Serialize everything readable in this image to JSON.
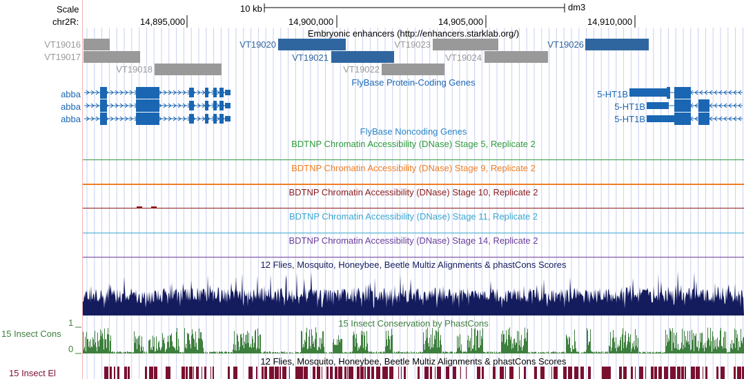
{
  "browser": {
    "ruler": {
      "scale_label": "Scale",
      "scale_bar_text": "10 kb",
      "assembly": "dm3",
      "chrom_label": "chr2R:",
      "positions": [
        "14,895,000",
        "14,900,000",
        "14,905,000",
        "14,910,000"
      ]
    },
    "tracks": {
      "enhancers": {
        "title": "Embryonic enhancers (http://enhancers.starklab.org/)",
        "items": [
          {
            "name": "VT19016",
            "color": "#999999"
          },
          {
            "name": "VT19017",
            "color": "#999999"
          },
          {
            "name": "VT19018",
            "color": "#999999"
          },
          {
            "name": "VT19020",
            "color": "#2f66a0"
          },
          {
            "name": "VT19021",
            "color": "#2f66a0"
          },
          {
            "name": "VT19022",
            "color": "#999999"
          },
          {
            "name": "VT19023",
            "color": "#999999"
          },
          {
            "name": "VT19024",
            "color": "#999999"
          },
          {
            "name": "VT19026",
            "color": "#2f66a0"
          }
        ]
      },
      "protein_genes": {
        "title": "FlyBase Protein-Coding Genes",
        "color": "#1a66b3",
        "left_labels": [
          "abba",
          "abba",
          "abba"
        ],
        "right_labels": [
          "5-HT1B",
          "5-HT1B",
          "5-HT1B"
        ]
      },
      "noncoding": {
        "title": "FlyBase Noncoding Genes",
        "color": "#2a84c7"
      },
      "dnase": [
        {
          "title": "BDTNP Chromatin Accessibility (DNase) Stage 5, Replicate 2",
          "color": "#2e9b3c"
        },
        {
          "title": "BDTNP Chromatin Accessibility (DNase) Stage 9, Replicate 2",
          "color": "#ef7d22"
        },
        {
          "title": "BDTNP Chromatin Accessibility (DNase) Stage 10, Replicate 2",
          "color": "#8a1a1a"
        },
        {
          "title": "BDTNP Chromatin Accessibility (DNase) Stage 11, Replicate 2",
          "color": "#3aa6d0"
        },
        {
          "title": "BDTNP Chromatin Accessibility (DNase) Stage 14, Replicate 2",
          "color": "#6a3d9a"
        }
      ],
      "multiz": {
        "title": "12 Flies, Mosquito, Honeybee, Beetle Multiz Alignments & phastCons Scores",
        "color": "#141c5e"
      },
      "conservation": {
        "title": "15 Insect Conservation by PhastCons",
        "side_label": "15 Insect Cons",
        "axis_max": "1",
        "axis_min": "0",
        "color": "#3d7f3d"
      },
      "elements": {
        "title": "12 Flies, Mosquito, Honeybee, Beetle Multiz Alignments & phastCons Scores",
        "side_label": "15 Insect El",
        "color": "#7a1030"
      }
    }
  }
}
